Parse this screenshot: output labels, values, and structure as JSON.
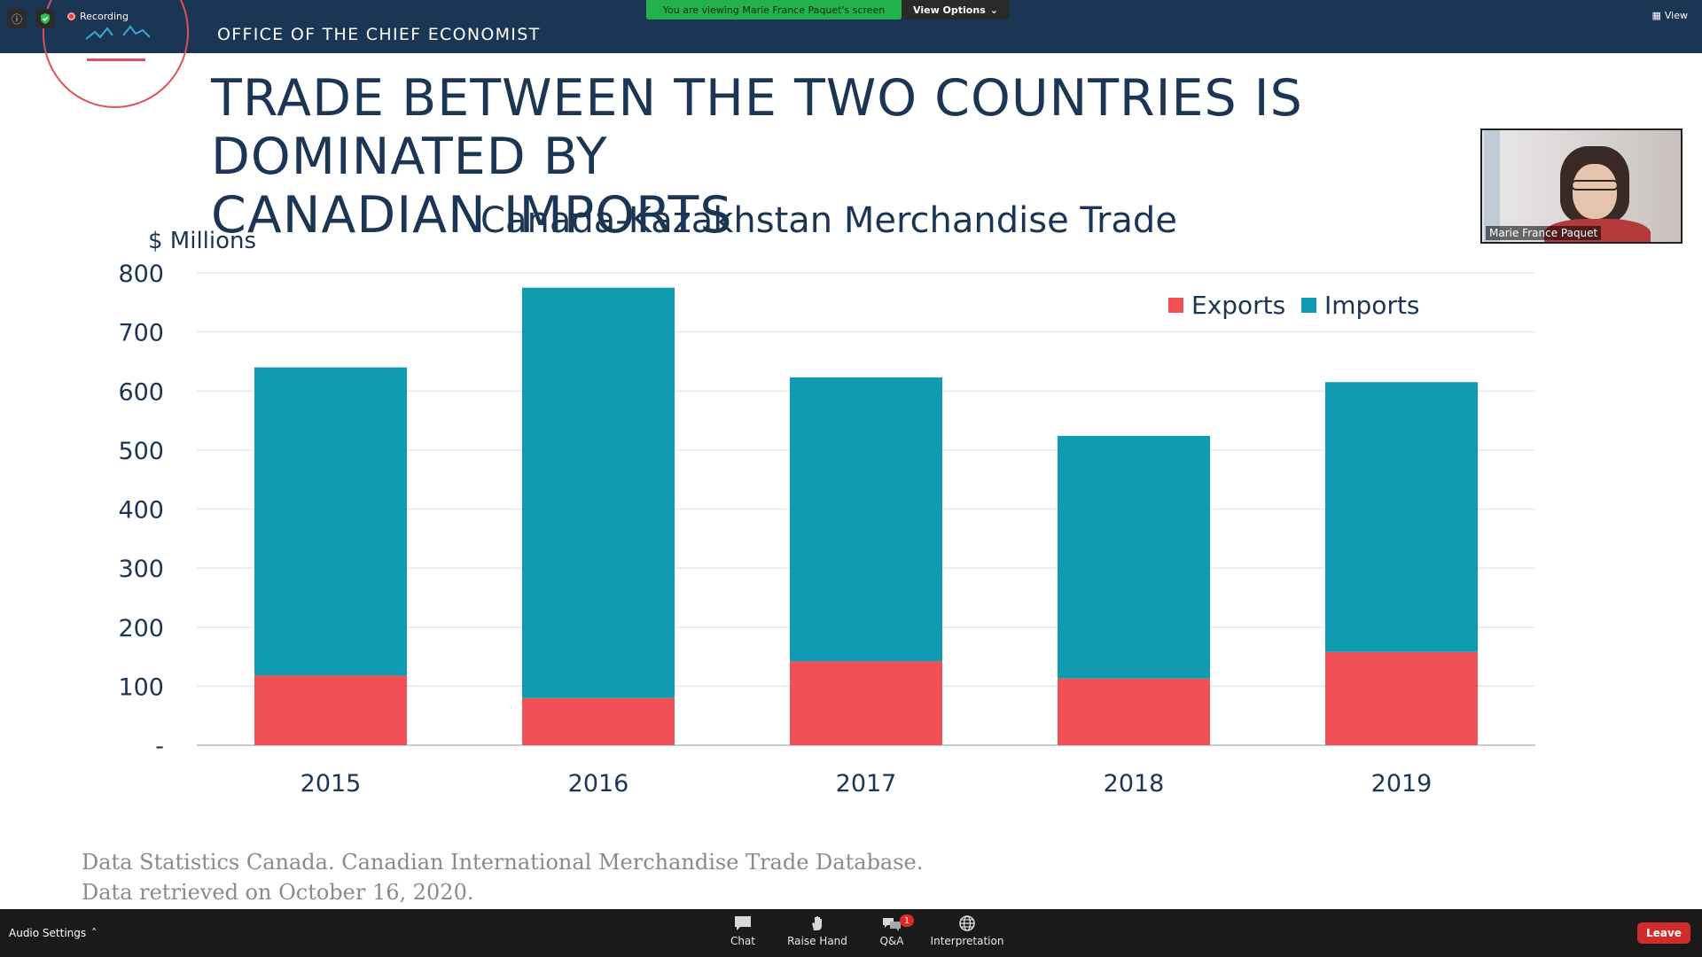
{
  "zoom": {
    "recording_label": "Recording",
    "viewing_banner": "You are viewing Marie France Paquet's screen",
    "view_options_label": "View Options",
    "view_label": "View",
    "audio_settings_label": "Audio Settings",
    "toolbar": {
      "chat": "Chat",
      "raise_hand": "Raise Hand",
      "qa": "Q&A",
      "qa_badge": "1",
      "interpretation": "Interpretation"
    },
    "leave_label": "Leave",
    "participant_name": "Marie France Paquet"
  },
  "slide": {
    "office": "OFFICE OF THE CHIEF ECONOMIST",
    "title_line1": "TRADE BETWEEN THE TWO COUNTRIES IS DOMINATED BY",
    "title_line2": "CANADIAN IMPORTS",
    "source_line1": "Data Statistics Canada. Canadian International Merchandise Trade Database.",
    "source_line2": "Data retrieved on October 16, 2020."
  },
  "colors": {
    "header": "#1b3554",
    "exports": "#f05157",
    "imports": "#0f9bb2",
    "title": "#1b3554",
    "leave": "#d32b2b",
    "banner": "#22b14c"
  },
  "chart_data": {
    "type": "bar",
    "stacked": true,
    "title": "Canada-Kazakhstan Merchandise Trade",
    "ylabel": "$ Millions",
    "xlabel": "",
    "categories": [
      "2015",
      "2016",
      "2017",
      "2018",
      "2019"
    ],
    "series": [
      {
        "name": "Exports",
        "color": "#f05157",
        "values": [
          118,
          80,
          142,
          113,
          158
        ]
      },
      {
        "name": "Imports",
        "color": "#0f9bb2",
        "values": [
          522,
          695,
          481,
          411,
          457
        ]
      }
    ],
    "ylim": [
      0,
      800
    ],
    "yticks": [
      0,
      100,
      200,
      300,
      400,
      500,
      600,
      700,
      800
    ],
    "ytick_labels": [
      "-",
      "100",
      "200",
      "300",
      "400",
      "500",
      "600",
      "700",
      "800"
    ],
    "grid": true,
    "legend_position": "top-right"
  }
}
